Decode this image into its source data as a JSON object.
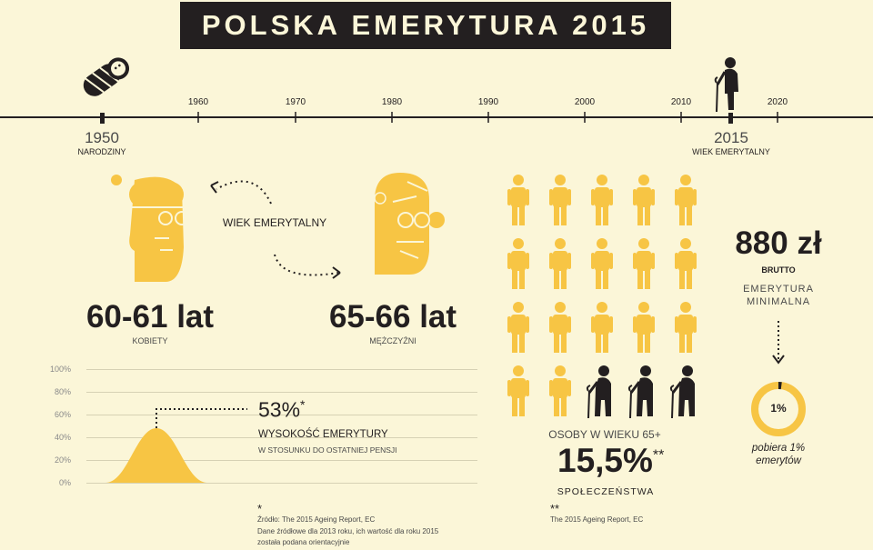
{
  "title": "POLSKA EMERYTURA 2015",
  "timeline": {
    "ticks": [
      "1960",
      "1970",
      "1980",
      "1990",
      "2000",
      "2010",
      "2020"
    ],
    "birth_year": "1950",
    "birth_label": "NARODZINY",
    "retire_year": "2015",
    "retire_label": "WIEK EMERYTALNY"
  },
  "retirement_age": {
    "center_label": "WIEK EMERYTALNY",
    "women_age": "60-61 lat",
    "women_label": "KOBIETY",
    "men_age": "65-66 lat",
    "men_label": "MĘŻCZYŹNI"
  },
  "pension_chart": {
    "y_labels": [
      "100%",
      "80%",
      "60%",
      "40%",
      "20%",
      "0%"
    ],
    "value": "53%",
    "value_star": "*",
    "heading": "WYSOKOŚĆ EMERYTURY",
    "subheading": "W STOSUNKU DO OSTATNIEJ PENSJI"
  },
  "population": {
    "heading": "OSOBY W WIEKU 65+",
    "value": "15,5%",
    "value_star": "**",
    "subheading": "SPOŁECZEŃSTWA",
    "total_figures": 20,
    "elderly_figures": 3
  },
  "min_pension": {
    "amount": "880 zł",
    "brutto": "BRUTTO",
    "label_line1": "EMERYTURA",
    "label_line2": "MINIMALNA",
    "donut_value": "1%",
    "donut_fraction": 0.01,
    "caption_line1": "pobiera 1%",
    "caption_line2": "emerytów"
  },
  "footnotes": {
    "star1_mark": "*",
    "star1_line1": "Źródło: The 2015 Ageing Report, EC",
    "star1_line2": "Dane źródłowe dla 2013 roku, ich wartość dla roku 2015",
    "star1_line3": "została podana orientacyjnie",
    "star2_mark": "**",
    "star2_line1": "The 2015 Ageing Report, EC"
  },
  "colors": {
    "background": "#fbf6d8",
    "accent": "#f7c544",
    "dark": "#231f20"
  }
}
